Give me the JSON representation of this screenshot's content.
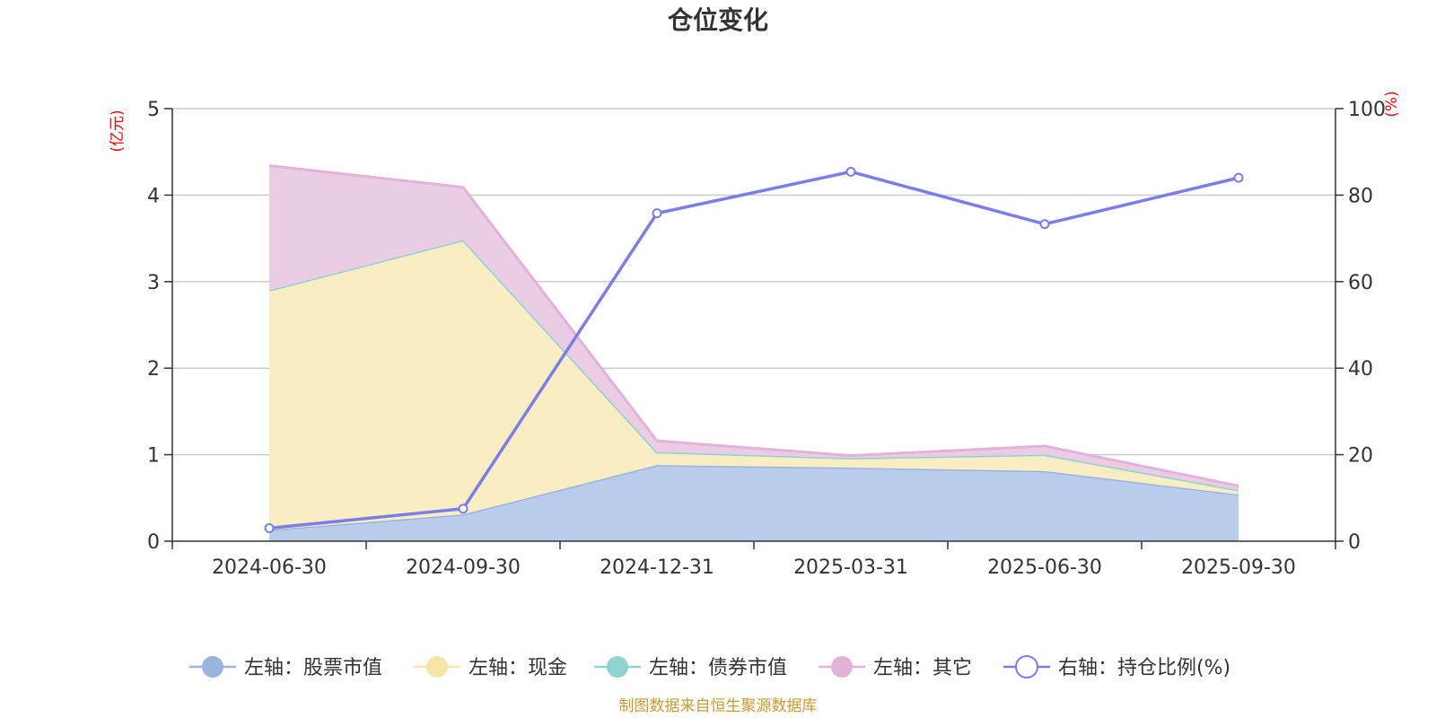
{
  "chart_data": {
    "type": "area",
    "title": "仓位变化",
    "categories": [
      "2024-06-30",
      "2024-09-30",
      "2024-12-31",
      "2025-03-31",
      "2025-06-30",
      "2025-09-30"
    ],
    "left_axis": {
      "unit": "(亿元)",
      "ylim": [
        0,
        5
      ],
      "ticks": [
        "0",
        "1",
        "2",
        "3",
        "4",
        "5"
      ]
    },
    "right_axis": {
      "unit": "(%)",
      "ylim": [
        0,
        100
      ],
      "ticks": [
        "0",
        "20",
        "40",
        "60",
        "80",
        "100"
      ]
    },
    "series": [
      {
        "name": "左轴：股票市值",
        "axis": "left",
        "kind": "stacked-area",
        "color": "#9ab4de",
        "fill": "#b9cceb",
        "values": [
          0.13,
          0.31,
          0.88,
          0.85,
          0.81,
          0.54
        ]
      },
      {
        "name": "左轴：现金",
        "axis": "left",
        "kind": "stacked-area",
        "color": "#f7e5a6",
        "fill": "#f9eec3",
        "values": [
          2.77,
          3.17,
          0.15,
          0.11,
          0.19,
          0.05
        ]
      },
      {
        "name": "左轴：债券市值",
        "axis": "left",
        "kind": "stacked-area",
        "color": "#8fd2d2",
        "fill": "#a9dede",
        "values": [
          0,
          0,
          0,
          0,
          0,
          0
        ]
      },
      {
        "name": "左轴：其它",
        "axis": "left",
        "kind": "stacked-area",
        "color": "#e3b2d9",
        "fill": "#ebcce5",
        "values": [
          1.44,
          0.61,
          0.13,
          0.03,
          0.1,
          0.05
        ]
      },
      {
        "name": "右轴：持仓比例(%)",
        "axis": "right",
        "kind": "line",
        "color": "#7b7de9",
        "fill": "#ffffff",
        "values": [
          3.0,
          7.5,
          75.8,
          85.4,
          73.3,
          84.0
        ]
      }
    ],
    "source": "制图数据来自恒生聚源数据库"
  }
}
